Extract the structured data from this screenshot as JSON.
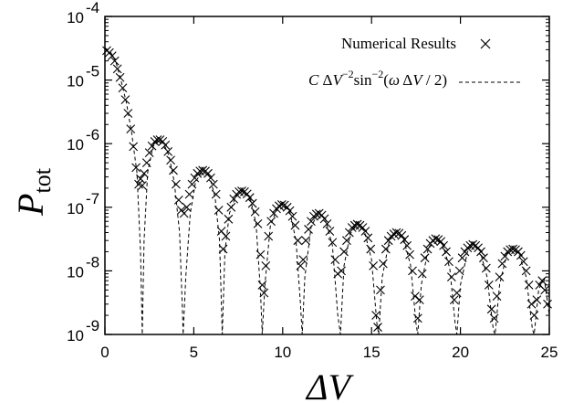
{
  "chart_data": {
    "type": "scatter",
    "title": "",
    "xlabel": "ΔV",
    "ylabel": {
      "main": "P",
      "subscript": "tot"
    },
    "xlim": [
      0,
      25
    ],
    "ylim": [
      1e-09,
      0.0001
    ],
    "yscale": "log",
    "grid": false,
    "legend_position": "top-right",
    "x_ticks": [
      0,
      5,
      10,
      15,
      20,
      25
    ],
    "x_tick_labels": [
      "0",
      "5",
      "10",
      "15",
      "20",
      "25"
    ],
    "y_ticks": [
      1e-09,
      1e-08,
      1e-07,
      1e-06,
      1e-05,
      0.0001
    ],
    "y_tick_labels": [
      {
        "base": "10",
        "exp": "-9"
      },
      {
        "base": "10",
        "exp": "-8"
      },
      {
        "base": "10",
        "exp": "-7"
      },
      {
        "base": "10",
        "exp": "-6"
      },
      {
        "base": "10",
        "exp": "-5"
      },
      {
        "base": "10",
        "exp": "-4"
      }
    ],
    "series": [
      {
        "name": "Numerical Results",
        "style": "markers",
        "marker": "x",
        "points": [
          [
            0.1,
            2.9e-05
          ],
          [
            0.25,
            2.7e-05
          ],
          [
            0.4,
            2.4e-05
          ],
          [
            0.55,
            2e-05
          ],
          [
            0.7,
            1.5e-05
          ],
          [
            0.85,
            1.1e-05
          ],
          [
            1.0,
            7.5e-06
          ],
          [
            1.15,
            4.9e-06
          ],
          [
            1.3,
            3e-06
          ],
          [
            1.45,
            1.7e-06
          ],
          [
            1.6,
            9e-07
          ],
          [
            1.75,
            4.2e-07
          ],
          [
            1.9,
            2.3e-07
          ],
          [
            2.0,
            2.8e-07
          ],
          [
            2.1,
            2.2e-07
          ],
          [
            2.2,
            3.4e-07
          ],
          [
            2.35,
            5e-07
          ],
          [
            2.5,
            7.2e-07
          ],
          [
            2.65,
            9.2e-07
          ],
          [
            2.8,
            1.08e-06
          ],
          [
            2.95,
            1.15e-06
          ],
          [
            3.1,
            1.15e-06
          ],
          [
            3.25,
            1.08e-06
          ],
          [
            3.4,
            9.5e-07
          ],
          [
            3.55,
            7.5e-07
          ],
          [
            3.7,
            5.5e-07
          ],
          [
            3.85,
            3.8e-07
          ],
          [
            4.0,
            2.3e-07
          ],
          [
            4.15,
            1.3e-07
          ],
          [
            4.3,
            9e-08
          ],
          [
            4.45,
            8e-08
          ],
          [
            4.6,
            1e-07
          ],
          [
            4.75,
            1.6e-07
          ],
          [
            4.9,
            2.3e-07
          ],
          [
            5.05,
            2.9e-07
          ],
          [
            5.2,
            3.4e-07
          ],
          [
            5.35,
            3.7e-07
          ],
          [
            5.5,
            3.8e-07
          ],
          [
            5.65,
            3.7e-07
          ],
          [
            5.8,
            3.4e-07
          ],
          [
            5.95,
            2.9e-07
          ],
          [
            6.1,
            2.3e-07
          ],
          [
            6.25,
            1.6e-07
          ],
          [
            6.4,
            9e-08
          ],
          [
            6.55,
            4.2e-08
          ],
          [
            6.65,
            2.2e-08
          ],
          [
            6.8,
            3.5e-08
          ],
          [
            6.95,
            6.5e-08
          ],
          [
            7.1,
            1e-07
          ],
          [
            7.25,
            1.35e-07
          ],
          [
            7.4,
            1.6e-07
          ],
          [
            7.55,
            1.75e-07
          ],
          [
            7.7,
            1.8e-07
          ],
          [
            7.85,
            1.75e-07
          ],
          [
            8.0,
            1.62e-07
          ],
          [
            8.15,
            1.42e-07
          ],
          [
            8.3,
            1.15e-07
          ],
          [
            8.45,
            8.5e-08
          ],
          [
            8.6,
            5.5e-08
          ],
          [
            8.75,
            1.8e-08
          ],
          [
            8.85,
            6e-09
          ],
          [
            8.95,
            4.5e-09
          ],
          [
            9.05,
            1.2e-08
          ],
          [
            9.2,
            3.5e-08
          ],
          [
            9.35,
            6e-08
          ],
          [
            9.5,
            8e-08
          ],
          [
            9.65,
            9.5e-08
          ],
          [
            9.8,
            1.05e-07
          ],
          [
            9.95,
            1.1e-07
          ],
          [
            10.1,
            1.08e-07
          ],
          [
            10.25,
            1e-07
          ],
          [
            10.4,
            8.8e-08
          ],
          [
            10.55,
            7.2e-08
          ],
          [
            10.7,
            5.2e-08
          ],
          [
            10.85,
            3e-08
          ],
          [
            11.0,
            1.2e-08
          ],
          [
            11.15,
            1.5e-08
          ],
          [
            11.3,
            3e-08
          ],
          [
            11.45,
            4.5e-08
          ],
          [
            11.6,
            6e-08
          ],
          [
            11.75,
            7.2e-08
          ],
          [
            11.9,
            7.8e-08
          ],
          [
            12.05,
            8e-08
          ],
          [
            12.2,
            7.5e-08
          ],
          [
            12.35,
            6.6e-08
          ],
          [
            12.5,
            5.5e-08
          ],
          [
            12.65,
            4.2e-08
          ],
          [
            12.8,
            2.8e-08
          ],
          [
            12.95,
            1.5e-08
          ],
          [
            13.1,
            9e-09
          ],
          [
            13.3,
            1e-08
          ],
          [
            13.45,
            2e-08
          ],
          [
            13.6,
            3e-08
          ],
          [
            13.75,
            4e-08
          ],
          [
            13.9,
            4.8e-08
          ],
          [
            14.05,
            5.2e-08
          ],
          [
            14.2,
            5.4e-08
          ],
          [
            14.35,
            5.2e-08
          ],
          [
            14.5,
            4.8e-08
          ],
          [
            14.65,
            4.2e-08
          ],
          [
            14.8,
            3.3e-08
          ],
          [
            14.95,
            2.2e-08
          ],
          [
            15.1,
            1.2e-08
          ],
          [
            15.25,
            2e-09
          ],
          [
            15.35,
            1.3e-09
          ],
          [
            15.5,
            5e-09
          ],
          [
            15.65,
            1.3e-08
          ],
          [
            15.8,
            2.2e-08
          ],
          [
            15.95,
            3e-08
          ],
          [
            16.1,
            3.5e-08
          ],
          [
            16.25,
            3.8e-08
          ],
          [
            16.4,
            4e-08
          ],
          [
            16.55,
            3.9e-08
          ],
          [
            16.7,
            3.6e-08
          ],
          [
            16.85,
            3.1e-08
          ],
          [
            17.0,
            2.5e-08
          ],
          [
            17.15,
            1.8e-08
          ],
          [
            17.3,
            1e-08
          ],
          [
            17.45,
            4e-09
          ],
          [
            17.6,
            1.8e-09
          ],
          [
            17.7,
            3.5e-09
          ],
          [
            17.85,
            9e-09
          ],
          [
            18.0,
            1.6e-08
          ],
          [
            18.15,
            2.2e-08
          ],
          [
            18.3,
            2.7e-08
          ],
          [
            18.45,
            3e-08
          ],
          [
            18.6,
            3.2e-08
          ],
          [
            18.75,
            3.1e-08
          ],
          [
            18.9,
            2.9e-08
          ],
          [
            19.05,
            2.5e-08
          ],
          [
            19.2,
            2e-08
          ],
          [
            19.35,
            1.4e-08
          ],
          [
            19.5,
            8e-09
          ],
          [
            19.65,
            3.5e-09
          ],
          [
            19.8,
            4.5e-09
          ],
          [
            19.95,
            1e-08
          ],
          [
            20.1,
            1.6e-08
          ],
          [
            20.25,
            2e-08
          ],
          [
            20.4,
            2.3e-08
          ],
          [
            20.55,
            2.5e-08
          ],
          [
            20.7,
            2.6e-08
          ],
          [
            20.85,
            2.5e-08
          ],
          [
            21.0,
            2.3e-08
          ],
          [
            21.15,
            2e-08
          ],
          [
            21.3,
            1.6e-08
          ],
          [
            21.45,
            1.1e-08
          ],
          [
            21.6,
            6e-09
          ],
          [
            21.75,
            2.5e-09
          ],
          [
            21.9,
            1.8e-09
          ],
          [
            22.05,
            4e-09
          ],
          [
            22.2,
            8e-09
          ],
          [
            22.35,
            1.3e-08
          ],
          [
            22.5,
            1.7e-08
          ],
          [
            22.65,
            2e-08
          ],
          [
            22.8,
            2.15e-08
          ],
          [
            22.95,
            2.2e-08
          ],
          [
            23.1,
            2.15e-08
          ],
          [
            23.25,
            2e-08
          ],
          [
            23.4,
            1.75e-08
          ],
          [
            23.55,
            1.4e-08
          ],
          [
            23.7,
            1e-08
          ],
          [
            23.85,
            6e-09
          ],
          [
            24.0,
            3e-09
          ],
          [
            24.15,
            2e-09
          ],
          [
            24.3,
            3.5e-09
          ],
          [
            24.45,
            6e-09
          ],
          [
            24.6,
            7e-09
          ],
          [
            24.75,
            5e-09
          ],
          [
            24.9,
            3e-09
          ]
        ]
      },
      {
        "name": "C ΔV⁻² sin⁻²(ω ΔV / 2)",
        "style": "dashed-line",
        "points": [
          [
            0.0,
            3.2e-05
          ],
          [
            0.3,
            2.8e-05
          ],
          [
            0.6,
            2e-05
          ],
          [
            0.9,
            1e-05
          ],
          [
            1.2,
            4.5e-06
          ],
          [
            1.5,
            1.5e-06
          ],
          [
            1.8,
            3.5e-07
          ],
          [
            2.0,
            2e-08
          ],
          [
            2.1,
            1e-09
          ],
          [
            2.2,
            3e-08
          ],
          [
            2.4,
            3.5e-07
          ],
          [
            2.7,
            9e-07
          ],
          [
            3.0,
            1.15e-06
          ],
          [
            3.3,
            1e-06
          ],
          [
            3.6,
            6.5e-07
          ],
          [
            3.9,
            2.5e-07
          ],
          [
            4.2,
            4e-08
          ],
          [
            4.35,
            3e-09
          ],
          [
            4.4,
            1e-09
          ],
          [
            4.55,
            8e-09
          ],
          [
            4.8,
            8e-08
          ],
          [
            5.1,
            2.5e-07
          ],
          [
            5.5,
            3.8e-07
          ],
          [
            5.9,
            3e-07
          ],
          [
            6.2,
            1.4e-07
          ],
          [
            6.45,
            3e-08
          ],
          [
            6.6,
            1e-09
          ],
          [
            6.75,
            2e-08
          ],
          [
            7.0,
            8e-08
          ],
          [
            7.4,
            1.6e-07
          ],
          [
            7.8,
            1.8e-07
          ],
          [
            8.2,
            1.3e-07
          ],
          [
            8.5,
            5.5e-08
          ],
          [
            8.75,
            5e-09
          ],
          [
            8.85,
            1e-09
          ],
          [
            9.0,
            6e-09
          ],
          [
            9.3,
            5e-08
          ],
          [
            9.7,
            1e-07
          ],
          [
            10.0,
            1.1e-07
          ],
          [
            10.4,
            8.5e-08
          ],
          [
            10.75,
            3e-08
          ],
          [
            11.0,
            3e-09
          ],
          [
            11.1,
            1e-09
          ],
          [
            11.25,
            8e-09
          ],
          [
            11.6,
            5e-08
          ],
          [
            12.0,
            8e-08
          ],
          [
            12.4,
            6.5e-08
          ],
          [
            12.8,
            2.5e-08
          ],
          [
            13.1,
            2e-09
          ],
          [
            13.25,
            1e-09
          ],
          [
            13.45,
            1.2e-08
          ],
          [
            13.8,
            3.8e-08
          ],
          [
            14.2,
            5.4e-08
          ],
          [
            14.6,
            4.2e-08
          ],
          [
            15.0,
            1.5e-08
          ],
          [
            15.3,
            1.5e-09
          ],
          [
            15.4,
            1e-09
          ],
          [
            15.6,
            8e-09
          ],
          [
            16.0,
            3e-08
          ],
          [
            16.4,
            4e-08
          ],
          [
            16.8,
            3.2e-08
          ],
          [
            17.2,
            1.2e-08
          ],
          [
            17.5,
            1.5e-09
          ],
          [
            17.6,
            1e-09
          ],
          [
            17.8,
            6e-09
          ],
          [
            18.2,
            2.3e-08
          ],
          [
            18.6,
            3.2e-08
          ],
          [
            19.0,
            2.6e-08
          ],
          [
            19.4,
            1.1e-08
          ],
          [
            19.7,
            1.5e-09
          ],
          [
            19.8,
            1e-09
          ],
          [
            20.0,
            6e-09
          ],
          [
            20.4,
            2e-08
          ],
          [
            20.7,
            2.6e-08
          ],
          [
            21.1,
            2.1e-08
          ],
          [
            21.5,
            8e-09
          ],
          [
            21.85,
            1.2e-09
          ],
          [
            21.95,
            1e-09
          ],
          [
            22.2,
            6e-09
          ],
          [
            22.6,
            1.8e-08
          ],
          [
            22.95,
            2.2e-08
          ],
          [
            23.3,
            1.8e-08
          ],
          [
            23.7,
            8e-09
          ],
          [
            24.05,
            1.2e-09
          ],
          [
            24.15,
            1e-09
          ],
          [
            24.4,
            5e-09
          ],
          [
            24.7,
            8e-09
          ],
          [
            25.0,
            2e-09
          ]
        ]
      }
    ]
  }
}
